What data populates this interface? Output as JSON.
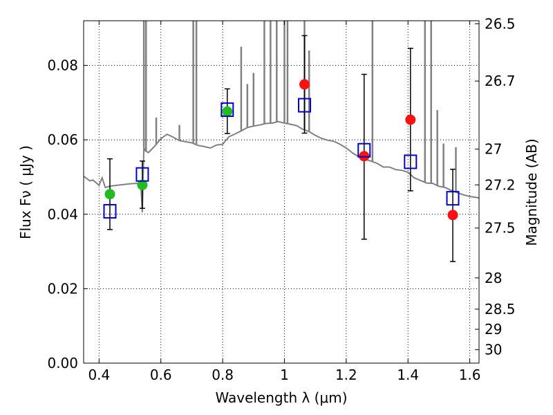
{
  "chart_data": {
    "type": "scatter",
    "xlabel": "Wavelength  λ (μm)",
    "ylabel": "Flux  Fν  ( μJy )",
    "y2label": "Magnitude (AB)",
    "xlim": [
      0.35,
      1.63
    ],
    "ylim": [
      0.0,
      0.092
    ],
    "grid": true,
    "x_ticks": [
      0.4,
      0.6,
      0.8,
      1.0,
      1.2,
      1.4,
      1.6
    ],
    "x_tick_labels": [
      "0.4",
      "0.6",
      "0.8",
      "1",
      "1.2",
      "1.4",
      "1.6"
    ],
    "y_ticks": [
      0.0,
      0.02,
      0.04,
      0.06,
      0.08
    ],
    "y_tick_labels": [
      "0.00",
      "0.02",
      "0.04",
      "0.06",
      "0.08"
    ],
    "y2_ticks": [
      {
        "label": "26.5",
        "flux": 0.0912
      },
      {
        "label": "26.7",
        "flux": 0.0758
      },
      {
        "label": "27",
        "flux": 0.0575
      },
      {
        "label": "27.2",
        "flux": 0.0479
      },
      {
        "label": "27.5",
        "flux": 0.0363
      },
      {
        "label": "28",
        "flux": 0.0229
      },
      {
        "label": "28.5",
        "flux": 0.0145
      },
      {
        "label": "29",
        "flux": 0.0091
      },
      {
        "label": "30",
        "flux": 0.0036
      }
    ],
    "colors": {
      "model": "#808080",
      "green_points": "#22bb22",
      "red_points": "#ff1111",
      "model_squares": "#0000cc",
      "error_bars": "#000000"
    },
    "series": [
      {
        "kind": "points_green",
        "x": [
          0.435,
          0.54,
          0.815
        ],
        "y": [
          0.0454,
          0.0479,
          0.0676
        ]
      },
      {
        "kind": "points_red",
        "x": [
          1.065,
          1.258,
          1.408,
          1.545
        ],
        "y": [
          0.0749,
          0.0556,
          0.0654,
          0.0398
        ]
      },
      {
        "kind": "model_squares",
        "x": [
          0.435,
          0.54,
          0.815,
          1.065,
          1.258,
          1.408,
          1.545
        ],
        "y": [
          0.0408,
          0.0507,
          0.0681,
          0.0693,
          0.0572,
          0.0541,
          0.0443
        ]
      },
      {
        "kind": "error_bars",
        "x": [
          0.435,
          0.54,
          0.815,
          1.065,
          1.258,
          1.408,
          1.545
        ],
        "low": [
          0.0359,
          0.0416,
          0.0617,
          0.0618,
          0.0333,
          0.0463,
          0.0273
        ],
        "high": [
          0.0549,
          0.0543,
          0.0737,
          0.088,
          0.0776,
          0.0846,
          0.0521
        ]
      },
      {
        "kind": "model_sed",
        "x": [
          0.35,
          0.37,
          0.38,
          0.4,
          0.41,
          0.42,
          0.44,
          0.46,
          0.48,
          0.5,
          0.52,
          0.535,
          0.54,
          0.545,
          0.55,
          0.56,
          0.58,
          0.6,
          0.62,
          0.64,
          0.66,
          0.68,
          0.7,
          0.72,
          0.74,
          0.76,
          0.78,
          0.8,
          0.82,
          0.84,
          0.86,
          0.88,
          0.9,
          0.92,
          0.94,
          0.96,
          0.98,
          1.0,
          1.02,
          1.04,
          1.06,
          1.08,
          1.1,
          1.12,
          1.14,
          1.16,
          1.18,
          1.2,
          1.22,
          1.24,
          1.26,
          1.28,
          1.3,
          1.32,
          1.34,
          1.36,
          1.38,
          1.4,
          1.42,
          1.44,
          1.46,
          1.48,
          1.5,
          1.52,
          1.54,
          1.56,
          1.58,
          1.6,
          1.63
        ],
        "y": [
          0.0502,
          0.049,
          0.0492,
          0.0478,
          0.0498,
          0.0472,
          0.0476,
          0.0478,
          0.048,
          0.0482,
          0.0483,
          0.0482,
          0.0405,
          0.058,
          0.057,
          0.0566,
          0.0583,
          0.0603,
          0.0615,
          0.0607,
          0.0598,
          0.0595,
          0.0592,
          0.0585,
          0.0582,
          0.0578,
          0.0586,
          0.0588,
          0.0608,
          0.0616,
          0.0624,
          0.0633,
          0.0637,
          0.064,
          0.0644,
          0.0645,
          0.0649,
          0.0645,
          0.0642,
          0.0638,
          0.0628,
          0.0622,
          0.0612,
          0.0604,
          0.0599,
          0.0596,
          0.0588,
          0.0578,
          0.0565,
          0.0555,
          0.0548,
          0.0543,
          0.0537,
          0.0527,
          0.0527,
          0.052,
          0.0518,
          0.0513,
          0.0498,
          0.0491,
          0.0484,
          0.0483,
          0.0475,
          0.0472,
          0.0464,
          0.0458,
          0.0452,
          0.0448,
          0.0444
        ]
      },
      {
        "kind": "emission_lines",
        "x": [
          0.545,
          0.552,
          0.585,
          0.66,
          0.705,
          0.715,
          0.86,
          0.88,
          0.9,
          0.935,
          0.955,
          0.975,
          1.0,
          1.01,
          1.065,
          1.08,
          1.285,
          1.455,
          1.475,
          1.495,
          1.515,
          1.555
        ],
        "y": [
          0.092,
          0.092,
          0.066,
          0.064,
          0.092,
          0.092,
          0.085,
          0.075,
          0.078,
          0.092,
          0.092,
          0.092,
          0.092,
          0.092,
          0.092,
          0.084,
          0.092,
          0.092,
          0.092,
          0.068,
          0.059,
          0.058
        ]
      }
    ]
  }
}
